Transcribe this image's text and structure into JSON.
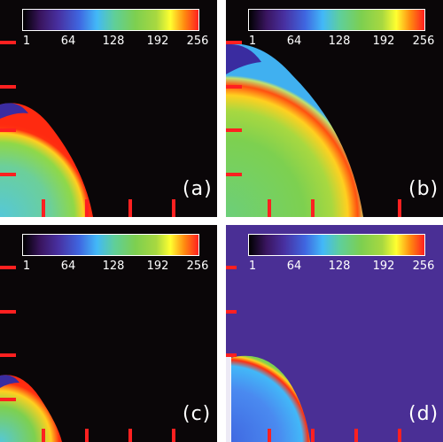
{
  "colorbar": {
    "gradient": "linear-gradient(to right,#000000 0%,#3a1560 10%,#4830a0 20%,#3f66e0 32%,#42b8f8 42%,#5fcf9a 52%,#7dcf50 64%,#a8d840 76%,#ffff30 84%,#ff8a10 92%,#ff2020 100%)",
    "ticks": [
      "1",
      "64",
      "128",
      "192",
      "256"
    ]
  },
  "panels": [
    {
      "id": "a",
      "label": "(a)",
      "background": "#0a0608"
    },
    {
      "id": "b",
      "label": "(b)",
      "background": "#0a0608"
    },
    {
      "id": "c",
      "label": "(c)",
      "background": "#0a0608"
    },
    {
      "id": "d",
      "label": "(d)",
      "background": "#4a2f95"
    }
  ],
  "colors": {
    "tick_marks": "#ff2020",
    "text": "#ffffff"
  }
}
